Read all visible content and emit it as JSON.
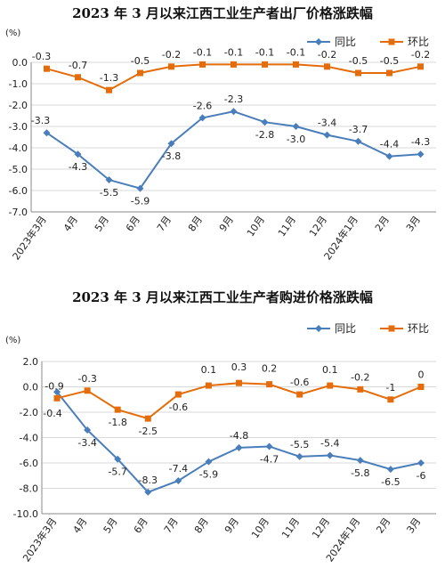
{
  "chart_data": [
    {
      "type": "line",
      "title": "2023 年 3 月以来江西工业生产者出厂价格涨跌幅",
      "ylabel": "(%)",
      "ylim": [
        -7.0,
        0.0
      ],
      "yticks": [
        "0.0",
        "-1.0",
        "-2.0",
        "-3.0",
        "-4.0",
        "-5.0",
        "-6.0",
        "-7.0"
      ],
      "categories": [
        "2023年3月",
        "4月",
        "5月",
        "6月",
        "7月",
        "8月",
        "9月",
        "10月",
        "11月",
        "12月",
        "2024年1月",
        "2月",
        "3月"
      ],
      "legend_position": "top-right",
      "grid": true,
      "series": [
        {
          "name": "同比",
          "color": "#4A7EBB",
          "marker": "diamond",
          "values": [
            -3.3,
            -4.3,
            -5.5,
            -5.9,
            -3.8,
            -2.6,
            -2.3,
            -2.8,
            -3.0,
            -3.4,
            -3.7,
            -4.4,
            -4.3
          ],
          "labels": [
            "-3.3",
            "-4.3",
            "-5.5",
            "-5.9",
            "-3.8",
            "-2.6",
            "-2.3",
            "-2.8",
            "-3.0",
            "-3.4",
            "-3.7",
            "-4.4",
            "-4.3"
          ]
        },
        {
          "name": "环比",
          "color": "#E46C0A",
          "marker": "square",
          "values": [
            -0.3,
            -0.7,
            -1.3,
            -0.5,
            -0.2,
            -0.1,
            -0.1,
            -0.1,
            -0.1,
            -0.2,
            -0.5,
            -0.5,
            -0.2
          ],
          "labels": [
            "-0.3",
            "-0.7",
            "-1.3",
            "-0.5",
            "-0.2",
            "-0.1",
            "-0.1",
            "-0.1",
            "-0.1",
            "-0.2",
            "-0.5",
            "-0.5",
            "-0.2"
          ]
        }
      ]
    },
    {
      "type": "line",
      "title": "2023 年 3 月以来江西工业生产者购进价格涨跌幅",
      "ylabel": "(%)",
      "ylim": [
        -10.0,
        2.0
      ],
      "yticks": [
        "2.0",
        "0.0",
        "-2.0",
        "-4.0",
        "-6.0",
        "-8.0",
        "-10.0"
      ],
      "categories": [
        "2023年3月",
        "4月",
        "5月",
        "6月",
        "7月",
        "8月",
        "9月",
        "10月",
        "11月",
        "12月",
        "2024年1月",
        "2月",
        "3月"
      ],
      "legend_position": "top-right",
      "grid": true,
      "series": [
        {
          "name": "同比",
          "color": "#4A7EBB",
          "marker": "diamond",
          "values": [
            -0.4,
            -3.4,
            -5.7,
            -8.3,
            -7.4,
            -5.9,
            -4.8,
            -4.7,
            -5.5,
            -5.4,
            -5.8,
            -6.5,
            -6.0
          ],
          "labels": [
            "-0.4",
            "-3.4",
            "-5.7",
            "-8.3",
            "-7.4",
            "-5.9",
            "-4.8",
            "-4.7",
            "-5.5",
            "-5.4",
            "-5.8",
            "-6.5",
            "-6"
          ]
        },
        {
          "name": "环比",
          "color": "#E46C0A",
          "marker": "square",
          "values": [
            -0.9,
            -0.3,
            -1.8,
            -2.5,
            -0.6,
            0.1,
            0.3,
            0.2,
            -0.6,
            0.1,
            -0.2,
            -1.0,
            0.0
          ],
          "labels": [
            "-0.9",
            "-0.3",
            "-1.8",
            "-2.5",
            "-0.6",
            "0.1",
            "0.3",
            "0.2",
            "-0.6",
            "0.1",
            "-0.2",
            "-1",
            "0"
          ]
        }
      ]
    }
  ]
}
